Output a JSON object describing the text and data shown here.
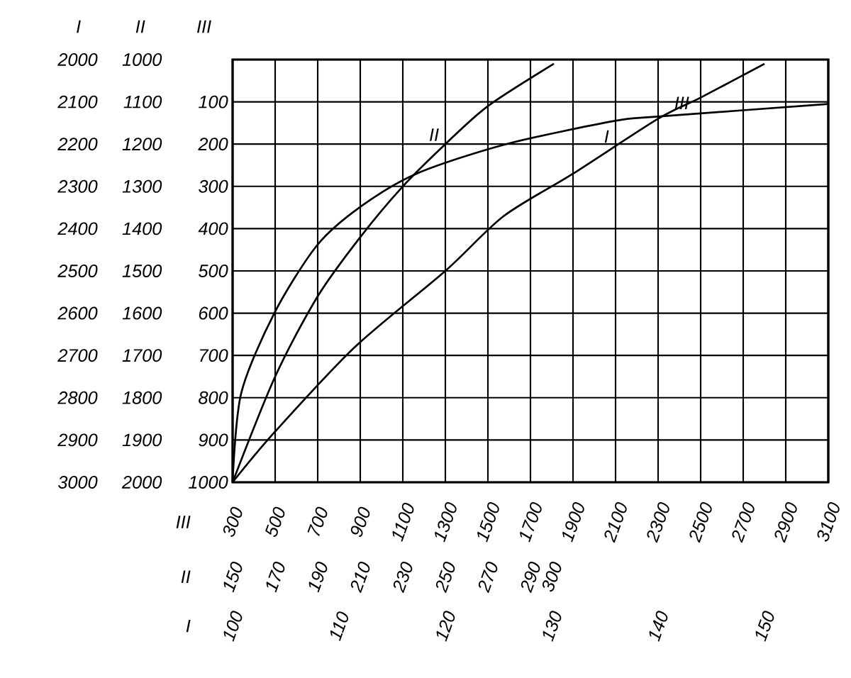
{
  "chart_data": [
    {
      "type": "line",
      "xlabel": "I",
      "ylabel": "I",
      "xlim": [
        100,
        156
      ],
      "xticks": [
        100,
        110,
        120,
        130,
        140,
        150
      ],
      "ylim": [
        3000,
        2000
      ],
      "yticks": [
        2000,
        2100,
        2200,
        2300,
        2400,
        2500,
        2600,
        2700,
        2800,
        2900,
        3000
      ],
      "series": [
        {
          "name": "I",
          "color": "#000000",
          "x": [
            100,
            104,
            111.5,
            120,
            125.5,
            132,
            140,
            144,
            150
          ],
          "values": [
            3000,
            2880,
            2680,
            2500,
            2370,
            2270,
            2140,
            2090,
            2010
          ]
        }
      ]
    },
    {
      "type": "line",
      "xlabel": "II",
      "ylabel": "II",
      "xlim": [
        150,
        430
      ],
      "xticks": [
        150,
        170,
        190,
        210,
        230,
        250,
        270,
        290,
        300
      ],
      "ylim": [
        2000,
        1000
      ],
      "yticks": [
        1000,
        1100,
        1200,
        1300,
        1400,
        1500,
        1600,
        1700,
        1800,
        1900,
        2000
      ],
      "series": [
        {
          "name": "II",
          "color": "#000000",
          "x": [
            150,
            170,
            190,
            210,
            230,
            250,
            270,
            301
          ],
          "values": [
            2000,
            1750,
            1560,
            1420,
            1300,
            1200,
            1110,
            1010
          ]
        }
      ]
    },
    {
      "type": "line",
      "xlabel": "III",
      "ylabel": "III",
      "grid": true,
      "xlim": [
        300,
        3100
      ],
      "xticks": [
        300,
        500,
        700,
        900,
        1100,
        1300,
        1500,
        1700,
        1900,
        2100,
        2300,
        2500,
        2700,
        2900,
        3100
      ],
      "ylim": [
        1000,
        0
      ],
      "yticks": [
        {
          "value": 0,
          "label": null
        },
        100,
        200,
        300,
        400,
        500,
        600,
        700,
        800,
        900,
        1000
      ],
      "series": [
        {
          "name": "III",
          "color": "#000000",
          "x": [
            300,
            340,
            496,
            696,
            896,
            1164,
            1586,
            2098,
            2298,
            3100
          ],
          "values": [
            1000,
            790,
            600,
            440,
            350,
            270,
            200,
            145,
            135,
            105
          ]
        }
      ]
    }
  ]
}
